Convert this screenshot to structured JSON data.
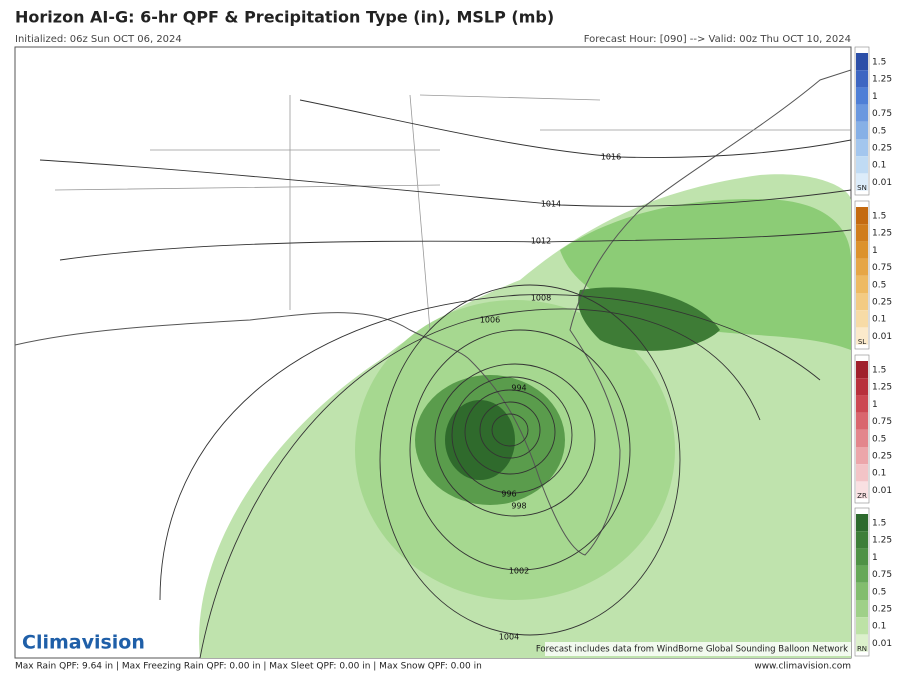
{
  "header": {
    "title": "Horizon AI-G: 6-hr QPF & Precipitation Type (in), MSLP (mb)",
    "initialized": "Initialized: 06z Sun OCT 06, 2024",
    "valid": "Forecast Hour: [090] --> Valid: 00z Thu OCT 10, 2024"
  },
  "map": {
    "isobar_labels": [
      "1016",
      "1014",
      "1012",
      "1008",
      "1006",
      "994",
      "996",
      "998",
      "1002",
      "1004"
    ],
    "note": "Forecast includes data from WindBorne Global Sounding Balloon Network",
    "logo": "Climavision"
  },
  "colorbars": [
    {
      "label": "SN",
      "ticks": [
        "1.5",
        "1.25",
        "1",
        "0.75",
        "0.5",
        "0.25",
        "0.1",
        "0.01"
      ],
      "colors": [
        "#2c4fa8",
        "#3d66c2",
        "#4f7fd6",
        "#6b98df",
        "#86b0e6",
        "#a3c6ee",
        "#c0dbf4",
        "#dcecfa"
      ]
    },
    {
      "label": "SL",
      "ticks": [
        "1.5",
        "1.25",
        "1",
        "0.75",
        "0.5",
        "0.25",
        "0.1",
        "0.01"
      ],
      "colors": [
        "#c46a10",
        "#d07d1c",
        "#dc922c",
        "#e6a646",
        "#eeba62",
        "#f3cb83",
        "#f7dba6",
        "#fbeacb"
      ]
    },
    {
      "label": "ZR",
      "ticks": [
        "1.5",
        "1.25",
        "1",
        "0.75",
        "0.5",
        "0.25",
        "0.1",
        "0.01"
      ],
      "colors": [
        "#a0202c",
        "#b8303c",
        "#cc4852",
        "#d9666e",
        "#e3868c",
        "#eca6aa",
        "#f3c4c7",
        "#f9e0e2"
      ]
    },
    {
      "label": "RN",
      "ticks": [
        "1.5",
        "1.25",
        "1",
        "0.75",
        "0.5",
        "0.25",
        "0.1",
        "0.01"
      ],
      "colors": [
        "#2d6a2d",
        "#3d7e38",
        "#4f9246",
        "#66a858",
        "#82bd6e",
        "#9fd088",
        "#bde2a6",
        "#dcf0cc"
      ]
    }
  ],
  "footer": {
    "stats": "Max Rain QPF: 9.64 in | Max Freezing Rain QPF: 0.00 in | Max Sleet QPF: 0.00 in | Max Snow QPF: 0.00 in",
    "website": "www.climavision.com"
  }
}
